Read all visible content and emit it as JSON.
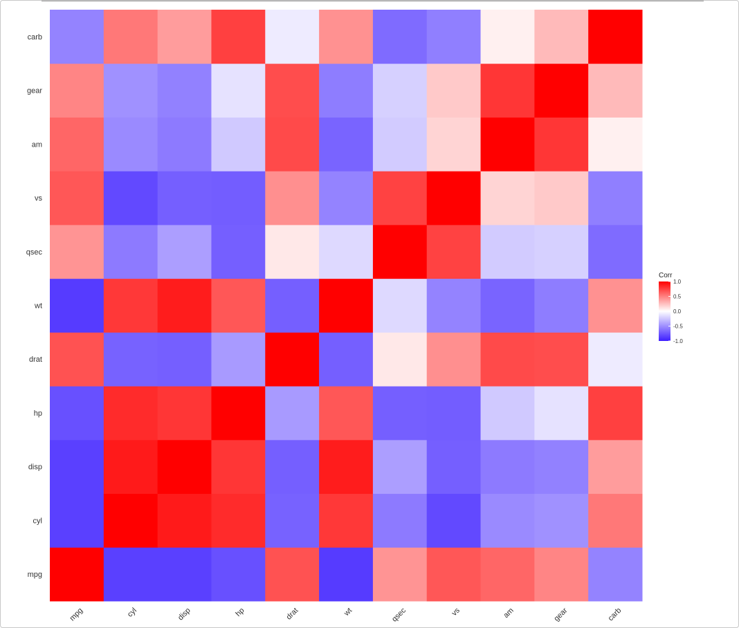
{
  "chart_data": {
    "type": "heatmap",
    "title": "",
    "xlabel": "",
    "ylabel": "",
    "variables": [
      "mpg",
      "cyl",
      "disp",
      "hp",
      "drat",
      "wt",
      "qsec",
      "vs",
      "am",
      "gear",
      "carb"
    ],
    "matrix": [
      [
        1.0,
        -0.85,
        -0.85,
        -0.78,
        0.68,
        -0.87,
        0.42,
        0.66,
        0.6,
        0.48,
        -0.55
      ],
      [
        -0.85,
        1.0,
        0.9,
        0.83,
        -0.7,
        0.78,
        -0.59,
        -0.81,
        -0.52,
        -0.49,
        0.53
      ],
      [
        -0.85,
        0.9,
        1.0,
        0.79,
        -0.71,
        0.89,
        -0.43,
        -0.71,
        -0.59,
        -0.56,
        0.39
      ],
      [
        -0.78,
        0.83,
        0.79,
        1.0,
        -0.45,
        0.66,
        -0.71,
        -0.72,
        -0.24,
        -0.13,
        0.75
      ],
      [
        0.68,
        -0.7,
        -0.71,
        -0.45,
        1.0,
        -0.71,
        0.09,
        0.44,
        0.71,
        0.7,
        -0.09
      ],
      [
        -0.87,
        0.78,
        0.89,
        0.66,
        -0.71,
        1.0,
        -0.17,
        -0.55,
        -0.69,
        -0.58,
        0.43
      ],
      [
        0.42,
        -0.59,
        -0.43,
        -0.71,
        0.09,
        -0.17,
        1.0,
        0.74,
        -0.23,
        -0.21,
        -0.66
      ],
      [
        0.66,
        -0.81,
        -0.71,
        -0.72,
        0.44,
        -0.55,
        0.74,
        1.0,
        0.17,
        0.21,
        -0.57
      ],
      [
        0.6,
        -0.52,
        -0.59,
        -0.24,
        0.71,
        -0.69,
        -0.23,
        0.17,
        1.0,
        0.79,
        0.06
      ],
      [
        0.48,
        -0.49,
        -0.56,
        -0.13,
        0.7,
        -0.58,
        -0.21,
        0.21,
        0.79,
        1.0,
        0.27
      ],
      [
        -0.55,
        0.53,
        0.39,
        0.75,
        -0.09,
        0.43,
        -0.66,
        -0.57,
        0.06,
        0.27,
        1.0
      ]
    ],
    "range": [
      -1,
      1
    ],
    "legend": {
      "title": "Corr",
      "ticks": [
        1.0,
        0.5,
        0.0,
        -0.5,
        -1.0
      ],
      "tick_labels": [
        "1.0",
        "0.5",
        "0.0",
        "-0.5",
        "-1.0"
      ],
      "placement": "right"
    },
    "colors": {
      "low": "#3d1eff",
      "mid": "#ffffff",
      "high": "#ff0000"
    },
    "grid": false
  }
}
